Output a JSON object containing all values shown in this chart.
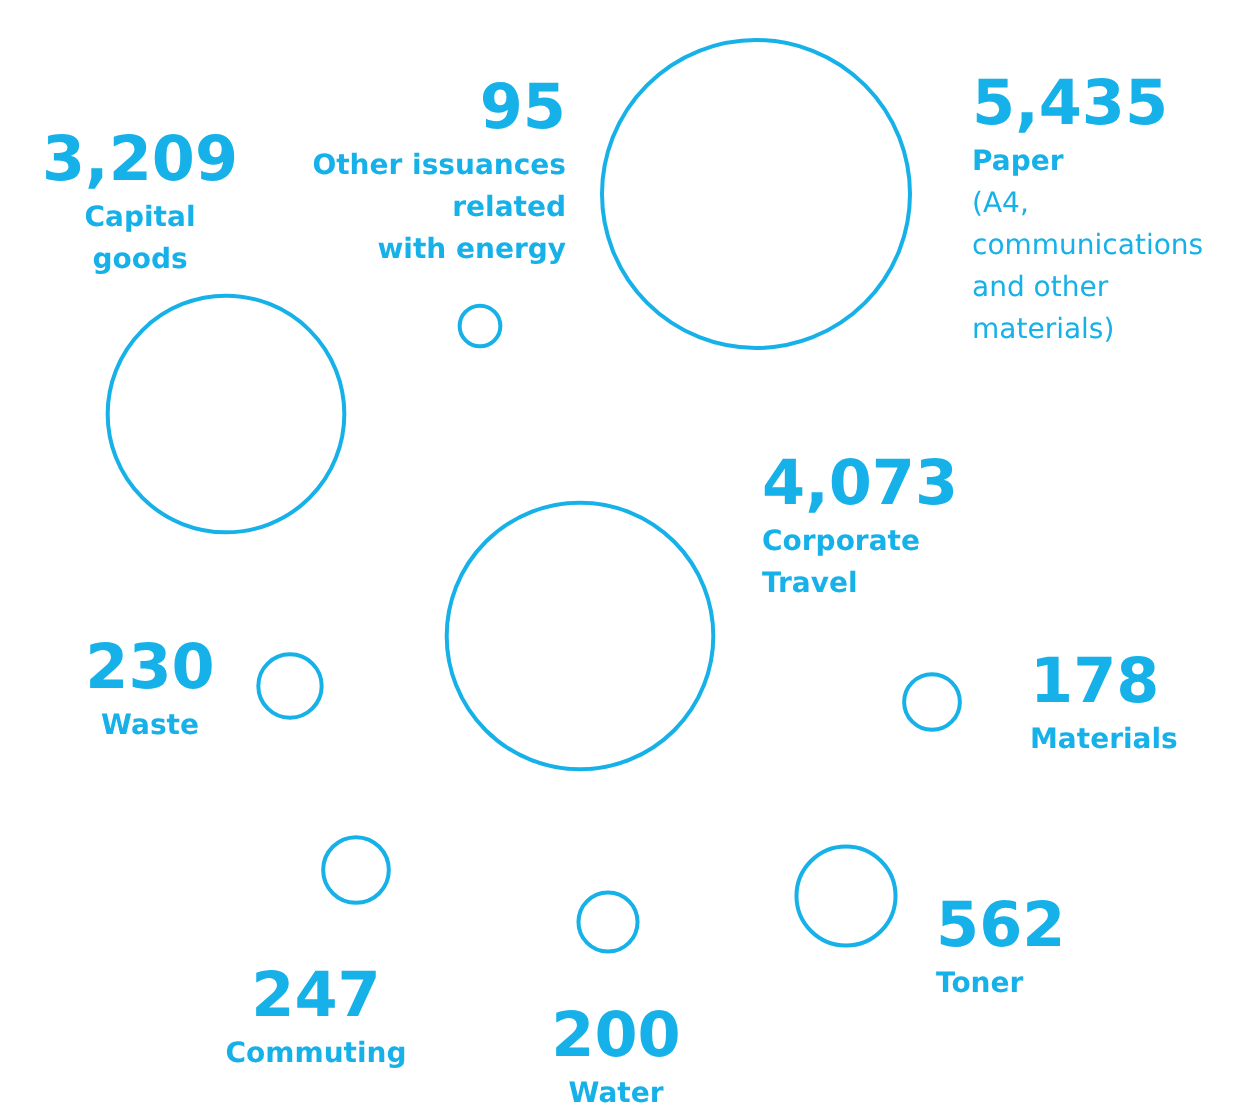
{
  "chart_data": {
    "type": "other",
    "categories": [
      "Capital\ngoods",
      "Other issuances\nrelated\nwith energy",
      "Paper\n(A4,\ncommunications\nand other\nmaterials)",
      "Corporate\nTravel",
      "Waste",
      "Materials",
      "Commuting",
      "Water",
      "Toner"
    ],
    "values": [
      3209,
      95,
      5435,
      4073,
      230,
      178,
      247,
      200,
      562
    ],
    "value_labels": [
      "3,209",
      "95",
      "5,435",
      "4,073",
      "230",
      "178",
      "247",
      "200",
      "562"
    ],
    "color": "#16b1e8"
  }
}
